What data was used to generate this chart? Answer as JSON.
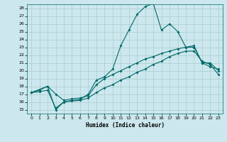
{
  "xlabel": "Humidex (Indice chaleur)",
  "xlim": [
    -0.5,
    23.5
  ],
  "ylim": [
    14.5,
    28.5
  ],
  "xticks": [
    0,
    1,
    2,
    3,
    4,
    5,
    6,
    7,
    8,
    9,
    10,
    11,
    12,
    13,
    14,
    15,
    16,
    17,
    18,
    19,
    20,
    21,
    22,
    23
  ],
  "yticks": [
    15,
    16,
    17,
    18,
    19,
    20,
    21,
    22,
    23,
    24,
    25,
    26,
    27,
    28
  ],
  "bg_color": "#cce8ee",
  "line_color": "#006868",
  "grid_color": "#aacccc",
  "line1_x": [
    0,
    2,
    3,
    4,
    5,
    6,
    7,
    8,
    9,
    10,
    11,
    12,
    13,
    14,
    15,
    16,
    17,
    18,
    19,
    20,
    21,
    22,
    23
  ],
  "line1_y": [
    17.2,
    18.0,
    15.0,
    16.0,
    16.2,
    16.3,
    17.0,
    18.8,
    19.2,
    20.2,
    23.2,
    25.2,
    27.2,
    28.2,
    28.6,
    25.2,
    26.0,
    25.0,
    23.0,
    23.2,
    21.0,
    20.5,
    20.2
  ],
  "line2_x": [
    0,
    1,
    2,
    3,
    4,
    5,
    6,
    7,
    8,
    9,
    10,
    11,
    12,
    13,
    14,
    15,
    16,
    17,
    18,
    19,
    20,
    21,
    22,
    23
  ],
  "line2_y": [
    17.2,
    17.5,
    18.0,
    17.0,
    16.2,
    16.4,
    16.5,
    16.8,
    18.2,
    19.0,
    19.5,
    20.0,
    20.5,
    21.0,
    21.5,
    21.8,
    22.2,
    22.5,
    22.8,
    23.0,
    23.0,
    21.0,
    21.0,
    20.0
  ],
  "line3_x": [
    0,
    1,
    2,
    3,
    4,
    5,
    6,
    7,
    8,
    9,
    10,
    11,
    12,
    13,
    14,
    15,
    16,
    17,
    18,
    19,
    20,
    21,
    22,
    23
  ],
  "line3_y": [
    17.2,
    17.3,
    17.5,
    15.2,
    16.0,
    16.1,
    16.2,
    16.5,
    17.2,
    17.8,
    18.2,
    18.8,
    19.2,
    19.8,
    20.2,
    20.8,
    21.2,
    21.8,
    22.2,
    22.5,
    22.5,
    21.2,
    20.8,
    19.5
  ]
}
